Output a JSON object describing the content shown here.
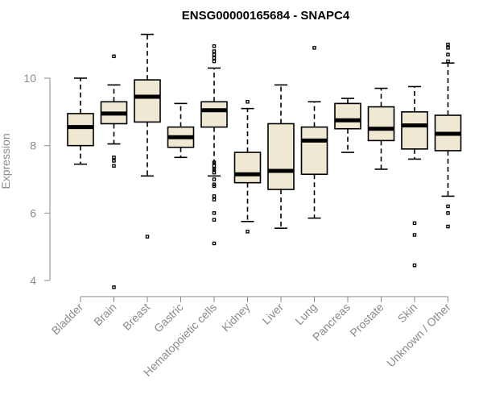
{
  "chart_data": {
    "type": "boxplot",
    "title": "ENSG00000165684 - SNAPC4",
    "xlabel": "",
    "ylabel": "Expression",
    "ylim": [
      3.9,
      11.3
    ],
    "yticks": [
      4,
      6,
      8,
      10
    ],
    "box_fill": "#efe8d2",
    "categories": [
      "Bladder",
      "Brain",
      "Breast",
      "Gastric",
      "Hematopoietic cells",
      "Kidney",
      "Liver",
      "Lung",
      "Pancreas",
      "Prostate",
      "Skin",
      "Unknown / Other"
    ],
    "boxes": [
      {
        "name": "Bladder",
        "whisker_low": 7.45,
        "q1": 8.0,
        "median": 8.55,
        "q3": 8.95,
        "whisker_high": 10.0,
        "outliers": []
      },
      {
        "name": "Brain",
        "whisker_low": 8.05,
        "q1": 8.65,
        "median": 8.95,
        "q3": 9.3,
        "whisker_high": 9.8,
        "outliers": [
          10.65,
          7.65,
          7.55,
          7.4,
          3.8
        ]
      },
      {
        "name": "Breast",
        "whisker_low": 7.1,
        "q1": 8.7,
        "median": 9.45,
        "q3": 9.95,
        "whisker_high": 11.3,
        "outliers": [
          5.3
        ]
      },
      {
        "name": "Gastric",
        "whisker_low": 7.65,
        "q1": 7.95,
        "median": 8.25,
        "q3": 8.55,
        "whisker_high": 9.25,
        "outliers": []
      },
      {
        "name": "Hematopoietic cells",
        "whisker_low": 7.1,
        "q1": 8.55,
        "median": 9.05,
        "q3": 9.3,
        "whisker_high": 10.3,
        "outliers": [
          10.95,
          10.8,
          10.7,
          10.6,
          10.5,
          7.5,
          7.4,
          7.3,
          7.2,
          7.0,
          6.85,
          6.8,
          6.5,
          6.4,
          6.0,
          5.8,
          5.1
        ]
      },
      {
        "name": "Kidney",
        "whisker_low": 5.75,
        "q1": 6.9,
        "median": 7.15,
        "q3": 7.8,
        "whisker_high": 9.1,
        "outliers": [
          9.3,
          5.45
        ]
      },
      {
        "name": "Liver",
        "whisker_low": 5.55,
        "q1": 6.7,
        "median": 7.25,
        "q3": 8.65,
        "whisker_high": 9.8,
        "outliers": []
      },
      {
        "name": "Lung",
        "whisker_low": 5.85,
        "q1": 7.15,
        "median": 8.15,
        "q3": 8.55,
        "whisker_high": 9.3,
        "outliers": [
          10.9
        ]
      },
      {
        "name": "Pancreas",
        "whisker_low": 7.8,
        "q1": 8.5,
        "median": 8.75,
        "q3": 9.25,
        "whisker_high": 9.4,
        "outliers": []
      },
      {
        "name": "Prostate",
        "whisker_low": 7.3,
        "q1": 8.15,
        "median": 8.5,
        "q3": 9.15,
        "whisker_high": 9.7,
        "outliers": []
      },
      {
        "name": "Skin",
        "whisker_low": 7.6,
        "q1": 7.9,
        "median": 8.6,
        "q3": 9.0,
        "whisker_high": 9.75,
        "outliers": [
          5.7,
          5.35,
          4.45
        ]
      },
      {
        "name": "Unknown / Other",
        "whisker_low": 6.5,
        "q1": 7.85,
        "median": 8.35,
        "q3": 8.9,
        "whisker_high": 10.45,
        "outliers": [
          11.0,
          10.9,
          10.7,
          10.5,
          6.2,
          6.0,
          5.6
        ]
      }
    ]
  }
}
